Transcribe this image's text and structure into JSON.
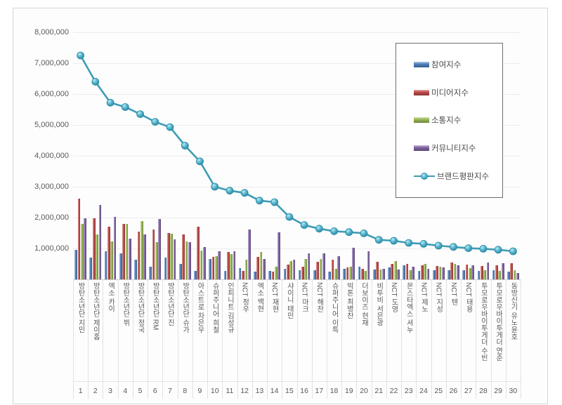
{
  "chart_data": {
    "type": "bar",
    "title": "",
    "categories": [
      "방탄소년단 지민",
      "방탄소년단 제이홉",
      "엑소 카이",
      "방탄소년단 뷔",
      "방탄소년단 정국",
      "방탄소년단 RM",
      "방탄소년단 진",
      "방탄소년단 슈가",
      "아스트로 차은우",
      "슈퍼주니어 희철",
      "인피니트 김성규",
      "NCT 정우",
      "엑소 백현",
      "NCT 재현",
      "샤이니 태민",
      "NCT 마크",
      "NCT 해찬",
      "슈퍼주니어 이특",
      "빅톤 최병찬",
      "더보이즈 현재",
      "비투비 서은광",
      "NCT 도영",
      "몬스타엑스 셔누",
      "NCT 제노",
      "NCT 지성",
      "NCT 텐",
      "NCT 태용",
      "투모로우바이투게더 수빈",
      "투모로우바이투게더 연준",
      "동방신기 유노윤호"
    ],
    "ranks": [
      "1",
      "2",
      "3",
      "4",
      "5",
      "6",
      "7",
      "8",
      "9",
      "10",
      "11",
      "12",
      "13",
      "14",
      "15",
      "16",
      "17",
      "18",
      "19",
      "20",
      "21",
      "22",
      "23",
      "24",
      "25",
      "26",
      "27",
      "28",
      "29",
      "30"
    ],
    "series": [
      {
        "name": "참여지수",
        "type": "bar",
        "color": "#4F81BD",
        "values": [
          950000,
          700000,
          900000,
          850000,
          630000,
          420000,
          700000,
          500000,
          280000,
          660000,
          280000,
          370000,
          260000,
          280000,
          330000,
          300000,
          300000,
          250000,
          330000,
          420000,
          320000,
          380000,
          460000,
          280000,
          300000,
          300000,
          300000,
          280000,
          300000,
          250000
        ]
      },
      {
        "name": "미디어지수",
        "type": "bar",
        "color": "#BE4B48",
        "values": [
          2620000,
          1970000,
          1700000,
          1800000,
          1550000,
          1610000,
          1500000,
          1450000,
          1700000,
          720000,
          880000,
          270000,
          720000,
          250000,
          480000,
          400000,
          560000,
          640000,
          380000,
          350000,
          560000,
          500000,
          500000,
          450000,
          440000,
          550000,
          470000,
          430000,
          450000,
          520000
        ]
      },
      {
        "name": "소통지수",
        "type": "bar",
        "color": "#98B954",
        "values": [
          1800000,
          1450000,
          1220000,
          1790000,
          1880000,
          1200000,
          1480000,
          1230000,
          930000,
          750000,
          820000,
          640000,
          880000,
          410000,
          580000,
          650000,
          670000,
          350000,
          410000,
          270000,
          320000,
          600000,
          300000,
          500000,
          420000,
          500000,
          370000,
          300000,
          280000,
          300000
        ]
      },
      {
        "name": "커뮤니티지수",
        "type": "bar",
        "color": "#8064A2",
        "values": [
          1980000,
          2400000,
          2020000,
          1320000,
          1450000,
          1960000,
          1300000,
          1200000,
          1050000,
          900000,
          900000,
          1610000,
          670000,
          1530000,
          630000,
          850000,
          850000,
          750000,
          1030000,
          920000,
          350000,
          320000,
          410000,
          350000,
          380000,
          450000,
          450000,
          550000,
          520000,
          200000
        ]
      },
      {
        "name": "브랜드평판지수",
        "type": "line",
        "color": "#4BACC6",
        "values": [
          7250000,
          6400000,
          5720000,
          5580000,
          5350000,
          5100000,
          4930000,
          4330000,
          3820000,
          3000000,
          2870000,
          2800000,
          2550000,
          2500000,
          2020000,
          1760000,
          1640000,
          1560000,
          1530000,
          1490000,
          1280000,
          1250000,
          1180000,
          1150000,
          1090000,
          1050000,
          1010000,
          990000,
          960000,
          910000
        ]
      }
    ],
    "xlabel": "",
    "ylabel": "",
    "ylim": [
      0,
      8000000
    ],
    "y_tick_step": 1000000,
    "y_tick_labels": [
      "1,000,000",
      "2,000,000",
      "3,000,000",
      "4,000,000",
      "5,000,000",
      "6,000,000",
      "7,000,000",
      "8,000,000"
    ],
    "grid": true,
    "legend_position": "upper-right"
  }
}
